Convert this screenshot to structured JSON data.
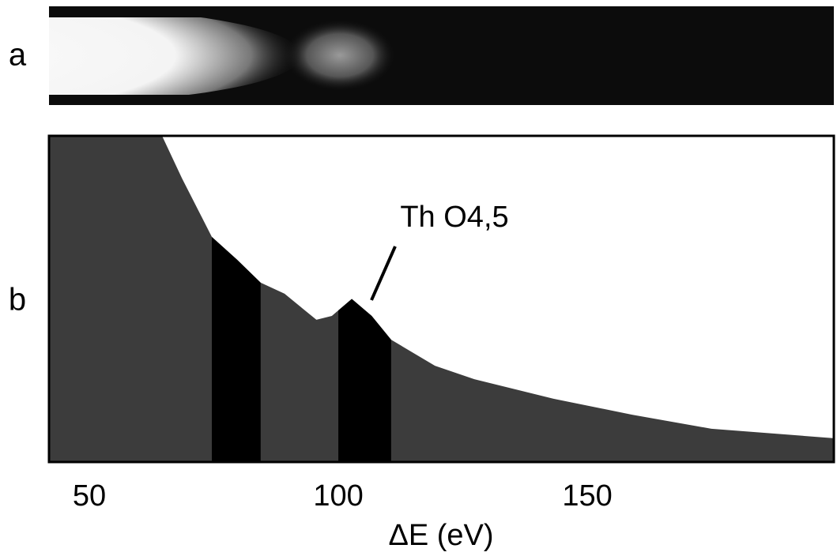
{
  "chart_data": {
    "type": "area",
    "panel_labels": [
      "a",
      "b"
    ],
    "xlabel": "ΔE (eV)",
    "annotation": "Th O4,5",
    "x": [
      64.6,
      68.6,
      74.6,
      79.7,
      84.4,
      89.2,
      95.6,
      98.7,
      102.7,
      106.7,
      110.6,
      119.4,
      127.3,
      143.2,
      159,
      174.9,
      199.5
    ],
    "values": [
      100,
      87,
      69,
      62,
      55,
      51.6,
      43.6,
      44.8,
      50,
      44.8,
      37.5,
      29.5,
      25.4,
      19.4,
      14.5,
      10.2,
      7.3
    ],
    "windows": [
      [
        74.6,
        84.4
      ],
      [
        100,
        110.6
      ]
    ],
    "color": "#3c3c3c",
    "window_color": "#000000",
    "xlim": [
      41.9,
      199.5
    ],
    "ylim": [
      0,
      100
    ],
    "xticks": [
      50,
      100,
      150
    ]
  }
}
